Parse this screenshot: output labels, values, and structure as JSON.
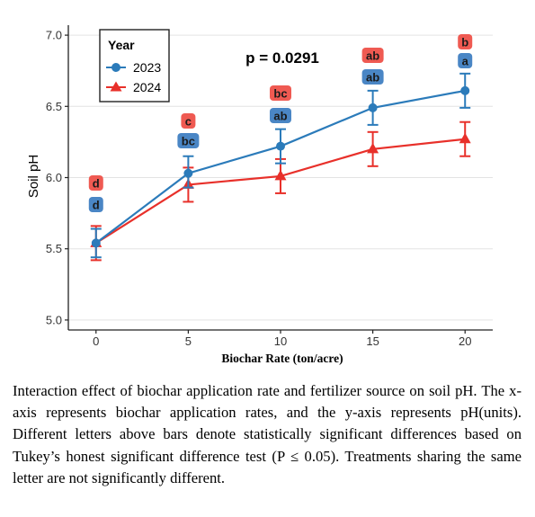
{
  "chart_data": {
    "type": "line",
    "title": "",
    "annotation": "p = 0.0291",
    "xlabel": "Biochar Rate (ton/acre)",
    "ylabel": "Soil pH",
    "x": [
      0,
      5,
      10,
      15,
      20
    ],
    "x_ticks": [
      "0",
      "5",
      "10",
      "15",
      "20"
    ],
    "y_ticks": [
      "5.0",
      "5.5",
      "6.0",
      "6.5",
      "7.0"
    ],
    "xlim": [
      -1.5,
      21.5
    ],
    "ylim": [
      4.93,
      7.07
    ],
    "grid": "horizontal",
    "legend": {
      "title": "Year",
      "placement": "top-left"
    },
    "series": [
      {
        "name": "2023",
        "color": "#2b7bba",
        "marker": "circle",
        "values": [
          5.54,
          6.03,
          6.22,
          6.49,
          6.61
        ],
        "err_low": [
          5.44,
          5.93,
          6.1,
          6.37,
          6.49
        ],
        "err_high": [
          5.64,
          6.15,
          6.34,
          6.61,
          6.73
        ],
        "letters": [
          "d",
          "bc",
          "ab",
          "ab",
          "a"
        ]
      },
      {
        "name": "2024",
        "color": "#e8302a",
        "marker": "triangle",
        "values": [
          5.54,
          5.95,
          6.01,
          6.2,
          6.27
        ],
        "err_low": [
          5.42,
          5.83,
          5.89,
          6.08,
          6.15
        ],
        "err_high": [
          5.66,
          6.07,
          6.13,
          6.32,
          6.39
        ],
        "letters": [
          "d",
          "c",
          "bc",
          "ab",
          "b"
        ]
      }
    ]
  },
  "caption": "Interaction effect of biochar application rate and fertilizer source on soil pH. The x-axis represents biochar application rates, and the y-axis represents pH(units). Different letters above bars denote statistically significant differences based on Tukey’s honest significant difference test (P ≤ 0.05). Treatments sharing the same letter are not significantly different."
}
